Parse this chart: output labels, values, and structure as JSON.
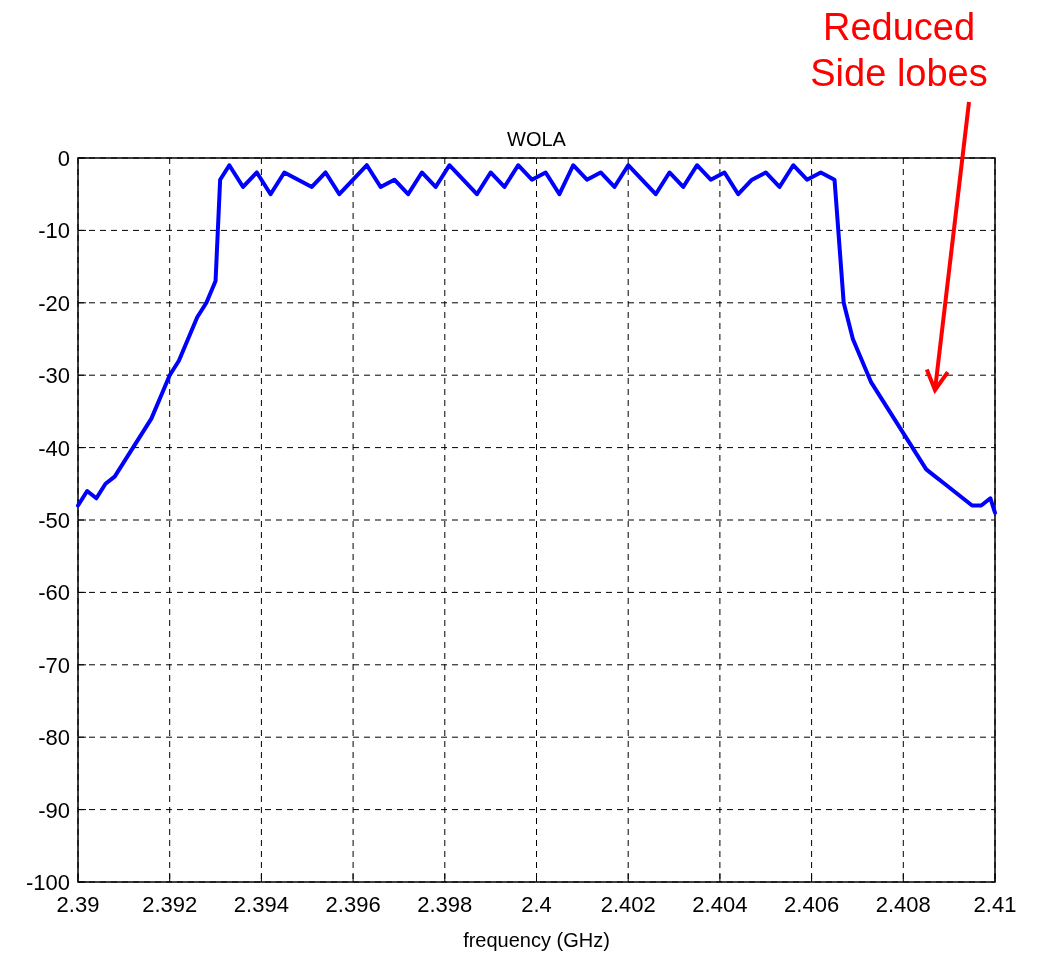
{
  "chart_data": {
    "type": "line",
    "title": "WOLA",
    "xlabel": "frequency (GHz)",
    "xlim": [
      2.39,
      2.41
    ],
    "xticks": [
      2.39,
      2.392,
      2.394,
      2.396,
      2.398,
      2.4,
      2.402,
      2.404,
      2.406,
      2.408,
      2.41
    ],
    "ylim": [
      -100,
      0
    ],
    "yticks": [
      -100,
      -90,
      -80,
      -70,
      -60,
      -50,
      -40,
      -30,
      -20,
      -10,
      0
    ],
    "grid": true,
    "line_style": "solid",
    "marker": "none",
    "annotations": [
      "Reduced\nSide lobes"
    ],
    "series": [
      {
        "color": "#0000ff",
        "x": [
          2.39,
          2.3902,
          2.3904,
          2.3906,
          2.3908,
          2.391,
          2.3912,
          2.3914,
          2.3916,
          2.3918,
          2.392,
          2.3922,
          2.3924,
          2.3926,
          2.3928,
          2.393,
          2.3931,
          2.3933,
          2.3936,
          2.3939,
          2.3942,
          2.3945,
          2.3948,
          2.3951,
          2.3954,
          2.3957,
          2.396,
          2.3963,
          2.3966,
          2.3969,
          2.3972,
          2.3975,
          2.3978,
          2.3981,
          2.3984,
          2.3987,
          2.399,
          2.3993,
          2.3996,
          2.3999,
          2.4002,
          2.4005,
          2.4008,
          2.4011,
          2.4014,
          2.4017,
          2.402,
          2.4023,
          2.4026,
          2.4029,
          2.4032,
          2.4035,
          2.4038,
          2.4041,
          2.4044,
          2.4047,
          2.405,
          2.4053,
          2.4056,
          2.4059,
          2.4062,
          2.4065,
          2.4067,
          2.4069,
          2.4071,
          2.4073,
          2.4075,
          2.4077,
          2.4079,
          2.4081,
          2.4083,
          2.4085,
          2.4087,
          2.4089,
          2.4091,
          2.4093,
          2.4095,
          2.4097,
          2.4099,
          2.41
        ],
        "values": [
          -48,
          -46,
          -47,
          -45,
          -44,
          -42,
          -40,
          -38,
          -36,
          -33,
          -30,
          -28,
          -25,
          -22,
          -20,
          -17,
          -3,
          -1,
          -4,
          -2,
          -5,
          -2,
          -3,
          -4,
          -2,
          -5,
          -3,
          -1,
          -4,
          -3,
          -5,
          -2,
          -4,
          -1,
          -3,
          -5,
          -2,
          -4,
          -1,
          -3,
          -2,
          -5,
          -1,
          -3,
          -2,
          -4,
          -1,
          -3,
          -5,
          -2,
          -4,
          -1,
          -3,
          -2,
          -5,
          -3,
          -2,
          -4,
          -1,
          -3,
          -2,
          -3,
          -20,
          -25,
          -28,
          -31,
          -33,
          -35,
          -37,
          -39,
          -41,
          -43,
          -44,
          -45,
          -46,
          -47,
          -48,
          -48,
          -47,
          -49
        ]
      }
    ]
  }
}
